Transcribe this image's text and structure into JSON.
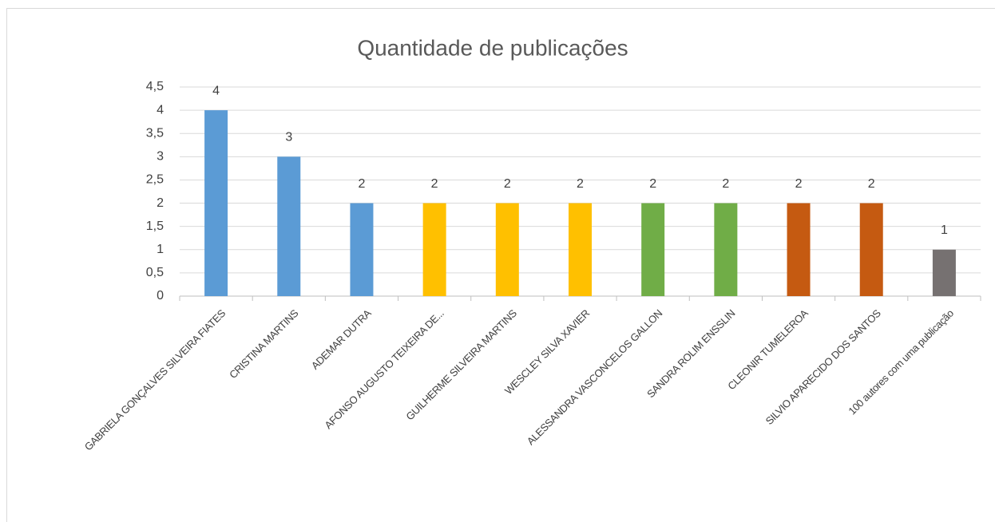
{
  "chart_data": {
    "type": "bar",
    "title": "Quantidade de publicações",
    "categories": [
      "GABRIELA GONÇALVES SILVEIRA FIATES",
      "CRISTINA MARTINS",
      "ADEMAR DUTRA",
      "AFONSO AUGUSTO TEIXEIRA DE...",
      "GUILHERME SILVEIRA MARTINS",
      "WESCLEY SILVA XAVIER",
      "ALESSANDRA VASCONCELOS GALLON",
      "SANDRA ROLIM ENSSLIN",
      "CLEONIR TUMELEROA",
      "SILVIO APARECIDO DOS SANTOS",
      "100 autores com uma publicação"
    ],
    "values": [
      4,
      3,
      2,
      2,
      2,
      2,
      2,
      2,
      2,
      2,
      1
    ],
    "colors": [
      "#5b9bd5",
      "#5b9bd5",
      "#5b9bd5",
      "#ffc000",
      "#ffc000",
      "#ffc000",
      "#70ad47",
      "#70ad47",
      "#c55a11",
      "#c55a11",
      "#767171"
    ],
    "ylim": [
      0,
      4.5
    ],
    "yticks": [
      0,
      {
        "value": 0.5,
        "label": "0,5"
      },
      1,
      {
        "value": 1.5,
        "label": "1,5"
      },
      2,
      {
        "value": 2.5,
        "label": "2,5"
      },
      3,
      {
        "value": 3.5,
        "label": "3,5"
      },
      4,
      {
        "value": 4.5,
        "label": "4,5"
      }
    ],
    "grid": true
  }
}
